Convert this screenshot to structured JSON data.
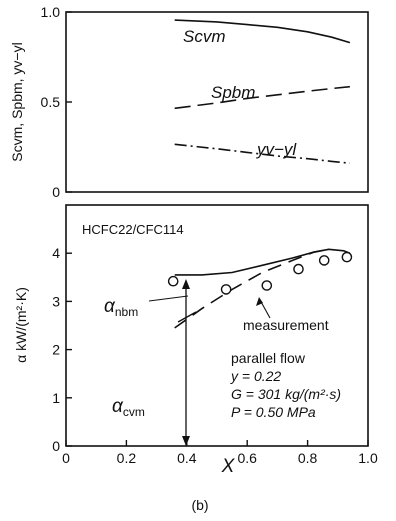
{
  "caption": "(b)",
  "chart_data": [
    {
      "type": "line",
      "ylabel": "Scvm, Spbm, yv−yl",
      "xlim": [
        0,
        1.0
      ],
      "ylim": [
        0,
        1.0
      ],
      "yticks": [
        "0",
        "0.5",
        "1.0"
      ],
      "series": [
        {
          "name": "Scvm",
          "x": [
            0.36,
            0.5,
            0.6,
            0.7,
            0.8,
            0.88,
            0.94
          ],
          "y": [
            0.955,
            0.945,
            0.93,
            0.915,
            0.89,
            0.86,
            0.83
          ]
        },
        {
          "name": "Spbm",
          "x": [
            0.36,
            0.5,
            0.6,
            0.7,
            0.8,
            0.88,
            0.94
          ],
          "y": [
            0.465,
            0.495,
            0.52,
            0.54,
            0.56,
            0.575,
            0.585
          ]
        },
        {
          "name": "yv−yl",
          "x": [
            0.36,
            0.5,
            0.6,
            0.7,
            0.8,
            0.88,
            0.94
          ],
          "y": [
            0.265,
            0.24,
            0.22,
            0.2,
            0.185,
            0.17,
            0.16
          ]
        }
      ]
    },
    {
      "type": "line",
      "title": "HCFC22/CFC114",
      "xlabel": "X",
      "ylabel": "α kW/(m²·K)",
      "xlim": [
        0,
        1.0
      ],
      "ylim": [
        0,
        5
      ],
      "xticks": [
        "0",
        "0.2",
        "0.4",
        "0.6",
        "0.8",
        "1.0"
      ],
      "yticks": [
        "0",
        "1",
        "2",
        "3",
        "4"
      ],
      "series": [
        {
          "name": "αcvm",
          "x": [
            0.36,
            0.45,
            0.55,
            0.65,
            0.75,
            0.82,
            0.87,
            0.92,
            0.94
          ],
          "y": [
            3.55,
            3.55,
            3.6,
            3.75,
            3.9,
            4.02,
            4.08,
            4.05,
            4.0
          ]
        },
        {
          "name": "αnbm",
          "x": [
            0.36,
            0.45,
            0.55,
            0.65,
            0.75,
            0.82,
            0.87
          ],
          "y": [
            2.45,
            2.85,
            3.25,
            3.6,
            3.85,
            4.02,
            4.08
          ]
        },
        {
          "name": "measurement",
          "x": [
            0.355,
            0.53,
            0.665,
            0.77,
            0.855,
            0.93
          ],
          "y": [
            3.42,
            3.25,
            3.33,
            3.67,
            3.85,
            3.92
          ]
        }
      ],
      "annotations": [
        "parallel flow",
        "y = 0.22",
        "G = 301 kg/(m²·s)",
        "P = 0.50 MPa"
      ],
      "labels": {
        "acvm_sym": "α",
        "acvm_sub": "cvm",
        "anbm_sym": "α",
        "anbm_sub": "nbm",
        "measurement": "measurement"
      }
    }
  ]
}
